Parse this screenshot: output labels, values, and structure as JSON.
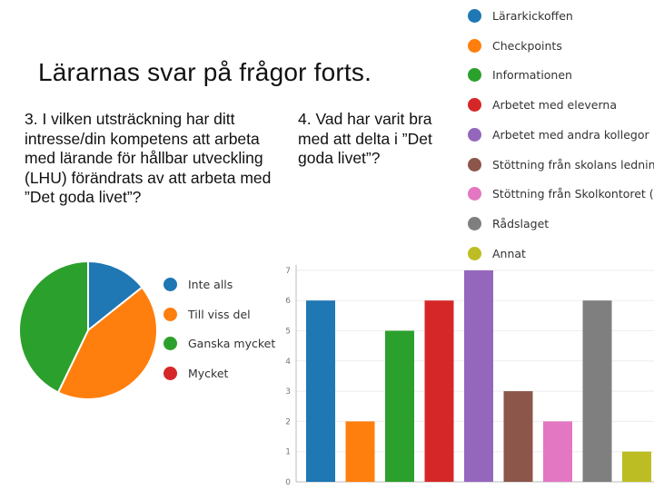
{
  "slide": {
    "title": "Lärarnas svar på frågor forts.",
    "question1": "3. I vilken utsträckning har ditt intresse/din kompetens att arbeta med lärande för hållbar utveckling (LHU) förändrats av att arbeta med ”Det goda livet”?",
    "question2": "4. Vad har varit bra med att delta i ”Det goda livet”?"
  },
  "chart_data": [
    {
      "type": "pie",
      "categories": [
        "Inte alls",
        "Till viss del",
        "Ganska mycket",
        "Mycket"
      ],
      "values": [
        2,
        6,
        6,
        0
      ],
      "colors": [
        "#1f77b4",
        "#ff7f0e",
        "#2ca02c",
        "#d62728"
      ],
      "legend_position": "right"
    },
    {
      "type": "bar",
      "categories": [
        "Lärarkickoffen",
        "Checkpoints",
        "Informationen",
        "Arbetet med eleverna",
        "Arbetet med andra kollegor",
        "Stöttning från skolans ledning",
        "Stöttning från Skolkontoret (L...",
        "Rådslaget",
        "Annat"
      ],
      "values": [
        6,
        2,
        5,
        6,
        7,
        3,
        2,
        6,
        1
      ],
      "colors": [
        "#1f77b4",
        "#ff7f0e",
        "#2ca02c",
        "#d62728",
        "#9467bd",
        "#8c564b",
        "#e377c2",
        "#7f7f7f",
        "#bcbd22"
      ],
      "ylim": [
        0,
        7
      ],
      "yticks": [
        "0",
        "1",
        "2",
        "3",
        "4",
        "5",
        "6",
        "7"
      ],
      "legend_position": "top-right"
    }
  ]
}
